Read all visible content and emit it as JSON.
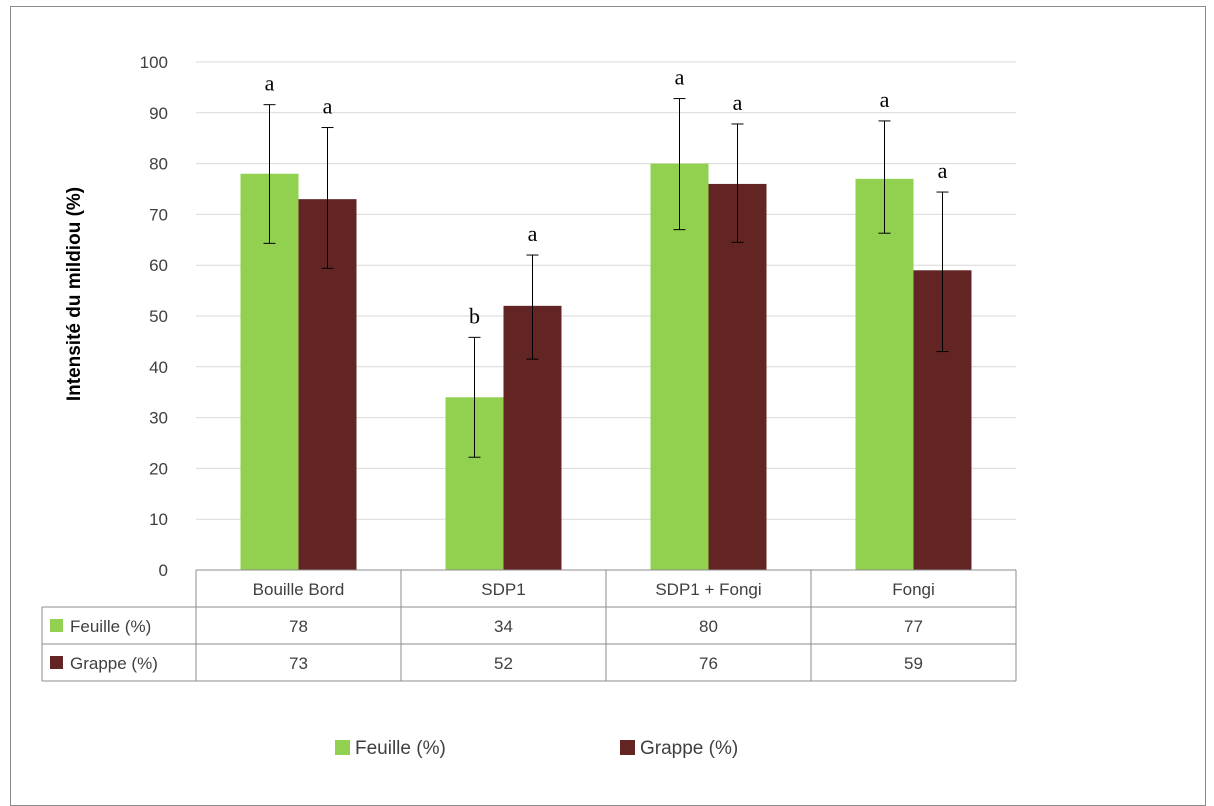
{
  "chart_data": {
    "type": "bar",
    "ylabel": "Intensité du mildiou (%)",
    "ylim": [
      0,
      100
    ],
    "yticks": [
      "0",
      "10",
      "20",
      "30",
      "40",
      "50",
      "60",
      "70",
      "80",
      "90",
      "100"
    ],
    "grid": true,
    "categories": [
      "Bouille Bord",
      "SDP1",
      "SDP1 + Fongi",
      "Fongi"
    ],
    "series": [
      {
        "name": "Feuille (%)",
        "color": "#92d050",
        "values": [
          78,
          34,
          80,
          77
        ],
        "value_labels": [
          "78",
          "34",
          "80",
          "77"
        ],
        "error_low": [
          64.3,
          22.2,
          67.0,
          66.3
        ],
        "error_high": [
          91.6,
          45.8,
          92.8,
          88.4
        ],
        "significance": [
          "a",
          "b",
          "a",
          "a"
        ]
      },
      {
        "name": "Grappe (%)",
        "color": "#632523",
        "values": [
          73,
          52,
          76,
          59
        ],
        "value_labels": [
          "73",
          "52",
          "76",
          "59"
        ],
        "error_low": [
          59.4,
          41.5,
          64.5,
          43.0
        ],
        "error_high": [
          87.1,
          62.0,
          87.8,
          74.4
        ],
        "significance": [
          "a",
          "a",
          "a",
          "a"
        ]
      }
    ],
    "legend_placement": "bottom",
    "data_table": true
  }
}
